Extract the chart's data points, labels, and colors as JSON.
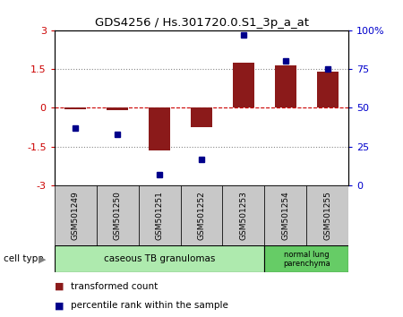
{
  "title": "GDS4256 / Hs.301720.0.S1_3p_a_at",
  "samples": [
    "GSM501249",
    "GSM501250",
    "GSM501251",
    "GSM501252",
    "GSM501253",
    "GSM501254",
    "GSM501255"
  ],
  "transformed_count": [
    -0.05,
    -0.1,
    -1.65,
    -0.75,
    1.75,
    1.65,
    1.4
  ],
  "percentile_rank": [
    37,
    33,
    7,
    17,
    97,
    80,
    75
  ],
  "ylim_left": [
    -3,
    3
  ],
  "ylim_right": [
    0,
    100
  ],
  "yticks_left": [
    -3,
    -1.5,
    0,
    1.5,
    3
  ],
  "yticks_right": [
    0,
    25,
    50,
    75,
    100
  ],
  "ytick_labels_left": [
    "-3",
    "-1.5",
    "0",
    "1.5",
    "3"
  ],
  "ytick_labels_right": [
    "0",
    "25",
    "50",
    "75",
    "100%"
  ],
  "bar_color": "#8B1A1A",
  "dot_color": "#00008B",
  "hline_color": "#CC0000",
  "dotted_color": "#888888",
  "group1_label": "caseous TB granulomas",
  "group1_color": "#AEEAAE",
  "group1_samples": 5,
  "group2_label": "normal lung\nparenchyma",
  "group2_color": "#66CC66",
  "group2_samples": 2,
  "cell_type_label": "cell type",
  "legend_red_label": "transformed count",
  "legend_blue_label": "percentile rank within the sample",
  "sample_box_color": "#C8C8C8",
  "bar_width": 0.5
}
